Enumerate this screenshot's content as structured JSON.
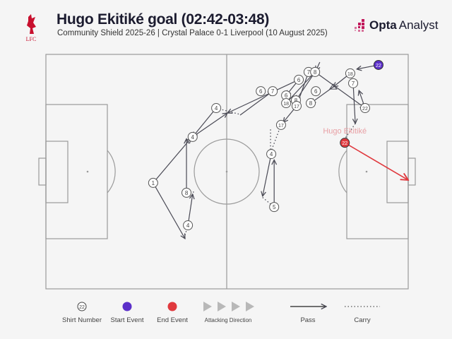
{
  "header": {
    "title": "Hugo Ekitiké goal (02:42-03:48)",
    "subtitle": "Community Shield 2025-26 | Crystal Palace 0-1 Liverpool (10 August 2025)",
    "club_logo_text": "LFC",
    "brand_bold": "Opta",
    "brand_light": "Analyst"
  },
  "colors": {
    "start": "#5b2fc9",
    "end": "#e0393e",
    "line": "#4a4a55",
    "pitch_line": "#9a9a9a",
    "label": "#e8a0a5",
    "brand": "#c2185b"
  },
  "chart_data": {
    "type": "pass-map",
    "pitch_coordinates": "0-100 length (attacking right), 0-100 width (top to bottom)",
    "scorer_label": "Hugo Ekitiké",
    "nodes": [
      {
        "n": "22",
        "x": 91.8,
        "y": 4.5,
        "kind": "start"
      },
      {
        "n": "18",
        "x": 84.0,
        "y": 8.1
      },
      {
        "n": "7",
        "x": 84.8,
        "y": 12.3
      },
      {
        "n": "22",
        "x": 88.1,
        "y": 22.9
      },
      {
        "n": "7",
        "x": 72.5,
        "y": 7.5
      },
      {
        "n": "8",
        "x": 74.3,
        "y": 7.5
      },
      {
        "n": "6",
        "x": 69.8,
        "y": 10.8
      },
      {
        "n": "6",
        "x": 74.5,
        "y": 15.7
      },
      {
        "n": "6",
        "x": 59.3,
        "y": 15.7
      },
      {
        "n": "7",
        "x": 62.6,
        "y": 15.7
      },
      {
        "n": "6",
        "x": 66.3,
        "y": 17.5
      },
      {
        "n": "18",
        "x": 66.3,
        "y": 20.8
      },
      {
        "n": "8",
        "x": 69.0,
        "y": 19.6
      },
      {
        "n": "17",
        "x": 69.2,
        "y": 22.0
      },
      {
        "n": "8",
        "x": 73.1,
        "y": 20.8
      },
      {
        "n": "17",
        "x": 64.9,
        "y": 30.1
      },
      {
        "n": "4",
        "x": 47.0,
        "y": 22.9
      },
      {
        "n": "4",
        "x": 40.5,
        "y": 35.2
      },
      {
        "n": "1",
        "x": 29.6,
        "y": 54.8
      },
      {
        "n": "8",
        "x": 38.8,
        "y": 59.0
      },
      {
        "n": "4",
        "x": 39.2,
        "y": 72.9
      },
      {
        "n": "4",
        "x": 62.2,
        "y": 42.5
      },
      {
        "n": "5",
        "x": 63.0,
        "y": 65.1
      },
      {
        "n": "22",
        "x": 82.5,
        "y": 37.7,
        "kind": "end"
      }
    ],
    "passes": [
      [
        91.8,
        4.5,
        85.8,
        6.3
      ],
      [
        84.0,
        8.1,
        79.3,
        13.9
      ],
      [
        79.3,
        13.9,
        73.1,
        20.8
      ],
      [
        74.3,
        7.5,
        88.1,
        22.9
      ],
      [
        84.8,
        12.3,
        85.4,
        29.5
      ],
      [
        88.1,
        22.9,
        86.4,
        15.4
      ],
      [
        75.6,
        3.3,
        74.5,
        7.0
      ],
      [
        74.3,
        7.5,
        66.3,
        20.8
      ],
      [
        72.5,
        7.5,
        69.2,
        22.0
      ],
      [
        69.8,
        10.8,
        66.3,
        17.5
      ],
      [
        69.2,
        22.0,
        65.5,
        29.0
      ],
      [
        74.3,
        7.5,
        69.0,
        19.6
      ],
      [
        69.8,
        10.8,
        50.1,
        25.0
      ],
      [
        53.6,
        25.9,
        62.6,
        15.7
      ],
      [
        47.0,
        22.9,
        40.5,
        35.2
      ],
      [
        40.5,
        35.2,
        50.1,
        25.0
      ],
      [
        29.6,
        54.8,
        40.0,
        35.8
      ],
      [
        38.8,
        59.0,
        38.8,
        36.0
      ],
      [
        39.2,
        72.9,
        40.5,
        59.6
      ],
      [
        29.6,
        54.8,
        38.4,
        78.6
      ],
      [
        62.2,
        42.5,
        59.8,
        60.5
      ],
      [
        63.0,
        65.1,
        63.0,
        45.0
      ],
      [
        82.5,
        37.7,
        100,
        53.6
      ]
    ],
    "carries": [
      [
        47.0,
        22.9,
        53.6,
        25.6
      ],
      [
        38.8,
        59.0,
        40.9,
        58.7
      ],
      [
        38.4,
        77.1,
        39.2,
        72.9
      ],
      [
        59.8,
        61.0,
        63.0,
        65.1
      ],
      [
        64.9,
        30.1,
        62.0,
        42.0
      ],
      [
        62.0,
        32.0,
        62.0,
        42.0
      ],
      [
        85.4,
        29.5,
        82.5,
        36.0
      ]
    ]
  },
  "legend": {
    "shirt_number_sample": "22",
    "shirt_number": "Shirt Number",
    "start_event": "Start Event",
    "end_event": "End Event",
    "attacking_direction": "Attacking Direction",
    "pass": "Pass",
    "carry": "Carry"
  }
}
